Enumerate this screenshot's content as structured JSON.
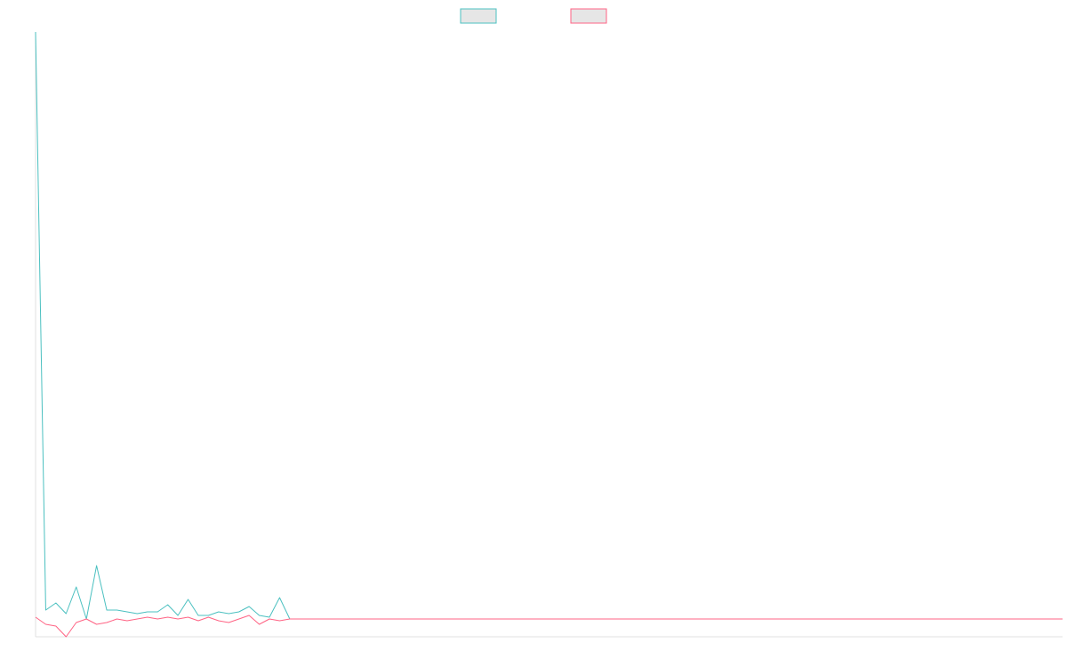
{
  "chart_data": {
    "type": "line",
    "title": "",
    "xlabel": "",
    "ylabel": "",
    "grid": false,
    "legend_position": "top",
    "xlim": [
      0,
      101
    ],
    "ylim": [
      -1,
      33
    ],
    "x": [
      0,
      1,
      2,
      3,
      4,
      5,
      6,
      7,
      8,
      9,
      10,
      11,
      12,
      13,
      14,
      15,
      16,
      17,
      18,
      19,
      20,
      21,
      22,
      23,
      24,
      25,
      26,
      27,
      28,
      29,
      30,
      31,
      32,
      33,
      34,
      35,
      36,
      37,
      38,
      39,
      40,
      41,
      42,
      43,
      44,
      45,
      46,
      47,
      48,
      49,
      50,
      51,
      52,
      53,
      54,
      55,
      56,
      57,
      58,
      59,
      60,
      61,
      62,
      63,
      64,
      65,
      66,
      67,
      68,
      69,
      70,
      71,
      72,
      73,
      74,
      75,
      76,
      77,
      78,
      79,
      80,
      81,
      82,
      83,
      84,
      85,
      86,
      87,
      88,
      89,
      90,
      91,
      92,
      93,
      94,
      95,
      96,
      97,
      98,
      99,
      100,
      101
    ],
    "series": [
      {
        "name": "",
        "color": "#4bc0c0",
        "fill": "#e6e6e6",
        "values": [
          33,
          0.5,
          0.9,
          0.3,
          1.8,
          0,
          3,
          0.5,
          0.5,
          0.4,
          0.3,
          0.4,
          0.4,
          0.8,
          0.2,
          1.1,
          0.2,
          0.2,
          0.4,
          0.3,
          0.4,
          0.7,
          0.2,
          0.1,
          1.2,
          0,
          0,
          0,
          0,
          0,
          0,
          0,
          0,
          0,
          0,
          0,
          0,
          0,
          0,
          0,
          0,
          0,
          0,
          0,
          0,
          0,
          0,
          0,
          0,
          0,
          0,
          0,
          0,
          0,
          0,
          0,
          0,
          0,
          0,
          0,
          0,
          0,
          0,
          0,
          0,
          0,
          0,
          0,
          0,
          0,
          0,
          0,
          0,
          0,
          0,
          0,
          0,
          0,
          0,
          0,
          0,
          0,
          0,
          0,
          0,
          0,
          0,
          0,
          0,
          0,
          0,
          0,
          0,
          0,
          0,
          0,
          0,
          0,
          0,
          0,
          0,
          0
        ]
      },
      {
        "name": "",
        "color": "#ff6384",
        "fill": "#e6e6e6",
        "values": [
          0.1,
          -0.3,
          -0.4,
          -1,
          -0.2,
          0,
          -0.3,
          -0.2,
          0,
          -0.1,
          0,
          0.1,
          0,
          0.1,
          0,
          0.1,
          -0.1,
          0.1,
          -0.1,
          -0.2,
          0,
          0.2,
          -0.3,
          0,
          -0.1,
          0,
          0,
          0,
          0,
          0,
          0,
          0,
          0,
          0,
          0,
          0,
          0,
          0,
          0,
          0,
          0,
          0,
          0,
          0,
          0,
          0,
          0,
          0,
          0,
          0,
          0,
          0,
          0,
          0,
          0,
          0,
          0,
          0,
          0,
          0,
          0,
          0,
          0,
          0,
          0,
          0,
          0,
          0,
          0,
          0,
          0,
          0,
          0,
          0,
          0,
          0,
          0,
          0,
          0,
          0,
          0,
          0,
          0,
          0,
          0,
          0,
          0,
          0,
          0,
          0,
          0,
          0,
          0,
          0,
          0,
          0,
          0,
          0,
          0,
          0,
          0,
          0
        ]
      }
    ]
  }
}
